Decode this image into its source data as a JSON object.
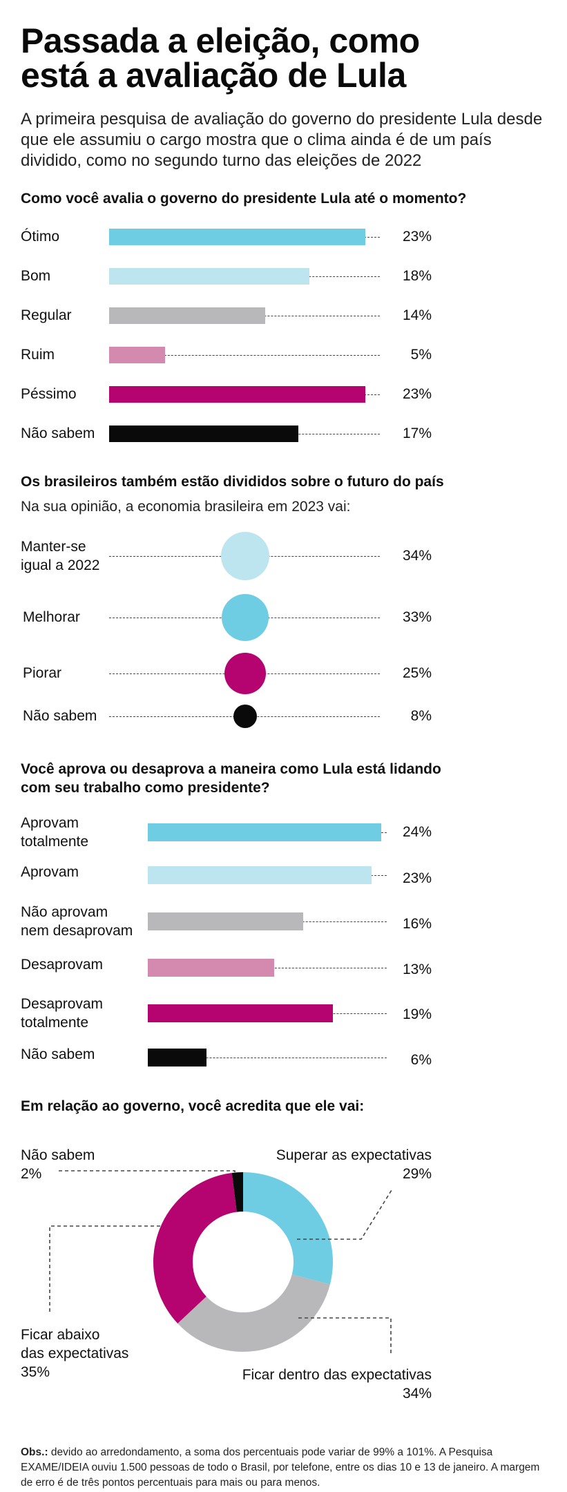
{
  "title_line1": "Passada a eleição, como",
  "title_line2": "está a avaliação de Lula",
  "subtitle": "A primeira pesquisa de avaliação do governo do presidente Lula desde que ele assumiu o cargo mostra que o clima ainda é de um país dividido, como no segundo turno das eleições de 2022",
  "colors": {
    "cyan": "#6ecde3",
    "light_cyan": "#bde5ef",
    "gray": "#b8b8ba",
    "pink": "#d38aae",
    "magenta": "#b5046f",
    "black": "#0a0a0a"
  },
  "chart_data": [
    {
      "type": "bar",
      "title": "Como você avalia o governo do presidente Lula até o momento?",
      "categories": [
        "Ótimo",
        "Bom",
        "Regular",
        "Ruim",
        "Péssimo",
        "Não sabem"
      ],
      "values": [
        23,
        18,
        14,
        5,
        23,
        17
      ],
      "labels": [
        "23%",
        "18%",
        "14%",
        "5%",
        "23%",
        "17%"
      ],
      "unit": "%"
    },
    {
      "type": "scatter",
      "title": "Os brasileiros também estão divididos sobre o futuro do país",
      "subtitle": "Na sua opinião, a economia brasileira em 2023 vai:",
      "categories": [
        "Manter-se igual a 2022",
        "Melhorar",
        "Piorar",
        "Não sabem"
      ],
      "category_lines": [
        [
          "Manter-se",
          "igual a 2022"
        ],
        [
          "Melhorar"
        ],
        [
          "Piorar"
        ],
        [
          "Não sabem"
        ]
      ],
      "values": [
        34,
        33,
        25,
        8
      ],
      "labels": [
        "34%",
        "33%",
        "25%",
        "8%"
      ],
      "unit": "%"
    },
    {
      "type": "bar",
      "title": "Você aprova ou desaprova a maneira como Lula está lidando com seu trabalho como presidente?",
      "title_lines": [
        "Você aprova ou desaprova a maneira como Lula está lidando",
        "com seu trabalho como presidente?"
      ],
      "categories": [
        "Aprovam totalmente",
        "Aprovam",
        "Não aprovam nem desaprovam",
        "Desaprovam",
        "Desaprovam totalmente",
        "Não sabem"
      ],
      "category_lines": [
        [
          "Aprovam",
          "totalmente"
        ],
        [
          "Aprovam"
        ],
        [
          "Não aprovam",
          "nem desaprovam"
        ],
        [
          "Desaprovam"
        ],
        [
          "Desaprovam",
          "totalmente"
        ],
        [
          "Não sabem"
        ]
      ],
      "values": [
        24,
        23,
        16,
        13,
        19,
        6
      ],
      "labels": [
        "24%",
        "23%",
        "16%",
        "13%",
        "19%",
        "6%"
      ],
      "unit": "%"
    },
    {
      "type": "pie",
      "title": "Em relação ao governo, você acredita que ele vai:",
      "categories": [
        "Superar as expectativas",
        "Ficar dentro das expectativas",
        "Ficar abaixo das expectativas",
        "Não sabem"
      ],
      "values": [
        29,
        34,
        35,
        2
      ],
      "labels": [
        "29%",
        "34%",
        "35%",
        "2%"
      ],
      "label_lines": [
        [
          "Superar as expectativas"
        ],
        [
          "Ficar dentro das expectativas"
        ],
        [
          "Ficar abaixo",
          "das expectativas"
        ],
        [
          "Não sabem"
        ]
      ],
      "unit": "%"
    }
  ],
  "note": {
    "label": "Obs.:",
    "text": " devido ao arredondamento, a soma dos percentuais pode variar de 99% a 101%. A Pesquisa EXAME/IDEIA ouviu 1.500 pessoas de todo o Brasil, por telefone, entre os dias 10 e 13 de janeiro. A margem de erro  é de três pontos percentuais para mais ou para menos."
  }
}
